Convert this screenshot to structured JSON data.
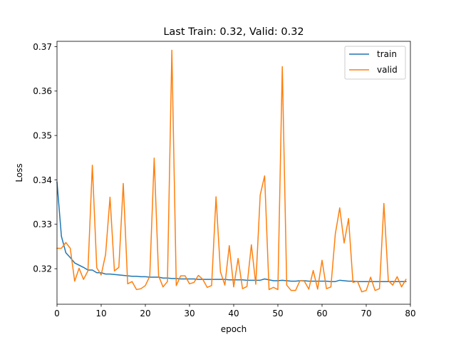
{
  "chart_data": {
    "type": "line",
    "title": "Last Train: 0.32, Valid: 0.32",
    "xlabel": "epoch",
    "ylabel": "Loss",
    "xlim": [
      0,
      80
    ],
    "ylim": [
      0.312,
      0.3712
    ],
    "xticks": [
      0,
      10,
      20,
      30,
      40,
      50,
      60,
      70,
      80
    ],
    "yticks": [
      0.32,
      0.33,
      0.34,
      0.35,
      0.36,
      0.37
    ],
    "ytick_labels": [
      "0.32",
      "0.33",
      "0.34",
      "0.35",
      "0.36",
      "0.37"
    ],
    "grid": false,
    "legend_position": "upper right",
    "x": [
      0,
      1,
      2,
      3,
      4,
      5,
      6,
      7,
      8,
      9,
      10,
      11,
      12,
      13,
      14,
      15,
      16,
      17,
      18,
      19,
      20,
      21,
      22,
      23,
      24,
      25,
      26,
      27,
      28,
      29,
      30,
      31,
      32,
      33,
      34,
      35,
      36,
      37,
      38,
      39,
      40,
      41,
      42,
      43,
      44,
      45,
      46,
      47,
      48,
      49,
      50,
      51,
      52,
      53,
      54,
      55,
      56,
      57,
      58,
      59,
      60,
      61,
      62,
      63,
      64,
      65,
      66,
      67,
      68,
      69,
      70,
      71,
      72,
      73,
      74,
      75,
      76,
      77,
      78,
      79
    ],
    "series": [
      {
        "name": "train",
        "color": "#1f77b4",
        "values": [
          0.3395,
          0.3273,
          0.3236,
          0.3225,
          0.3213,
          0.3208,
          0.3203,
          0.3197,
          0.3197,
          0.3191,
          0.3191,
          0.3188,
          0.3188,
          0.3187,
          0.3186,
          0.3185,
          0.3184,
          0.3183,
          0.3183,
          0.3182,
          0.3182,
          0.3181,
          0.3181,
          0.3181,
          0.3179,
          0.3179,
          0.3178,
          0.3178,
          0.3177,
          0.3177,
          0.3177,
          0.3177,
          0.3176,
          0.3176,
          0.3176,
          0.3176,
          0.3176,
          0.3176,
          0.3176,
          0.3175,
          0.3175,
          0.3175,
          0.3175,
          0.3174,
          0.3174,
          0.3174,
          0.3174,
          0.3177,
          0.3175,
          0.3173,
          0.3173,
          0.3174,
          0.3173,
          0.3172,
          0.3172,
          0.3173,
          0.3173,
          0.3172,
          0.3172,
          0.3172,
          0.3172,
          0.3172,
          0.3171,
          0.3171,
          0.3174,
          0.3173,
          0.3172,
          0.3172,
          0.3171,
          0.3171,
          0.3171,
          0.3171,
          0.3171,
          0.3171,
          0.3171,
          0.3171,
          0.3171,
          0.3171,
          0.3171,
          0.3171
        ]
      },
      {
        "name": "valid",
        "color": "#ff7f0e",
        "values": [
          0.3246,
          0.3246,
          0.3259,
          0.3246,
          0.3172,
          0.3201,
          0.3176,
          0.3195,
          0.3433,
          0.3202,
          0.3186,
          0.3232,
          0.3361,
          0.3195,
          0.3203,
          0.3392,
          0.3166,
          0.3171,
          0.3153,
          0.3155,
          0.3162,
          0.3183,
          0.3449,
          0.3184,
          0.3159,
          0.3171,
          0.3692,
          0.3162,
          0.3184,
          0.3184,
          0.3166,
          0.3169,
          0.3185,
          0.3176,
          0.3158,
          0.3162,
          0.3362,
          0.3193,
          0.3163,
          0.3252,
          0.3159,
          0.3223,
          0.3155,
          0.316,
          0.3254,
          0.3165,
          0.3366,
          0.3409,
          0.3153,
          0.3158,
          0.3153,
          0.3655,
          0.3163,
          0.3151,
          0.3151,
          0.3173,
          0.3172,
          0.3154,
          0.3196,
          0.3154,
          0.3219,
          0.3155,
          0.3159,
          0.3278,
          0.3337,
          0.3258,
          0.3313,
          0.3169,
          0.3172,
          0.3148,
          0.3151,
          0.3181,
          0.3151,
          0.3155,
          0.3347,
          0.3173,
          0.3163,
          0.3182,
          0.3159,
          0.3176
        ]
      }
    ]
  }
}
